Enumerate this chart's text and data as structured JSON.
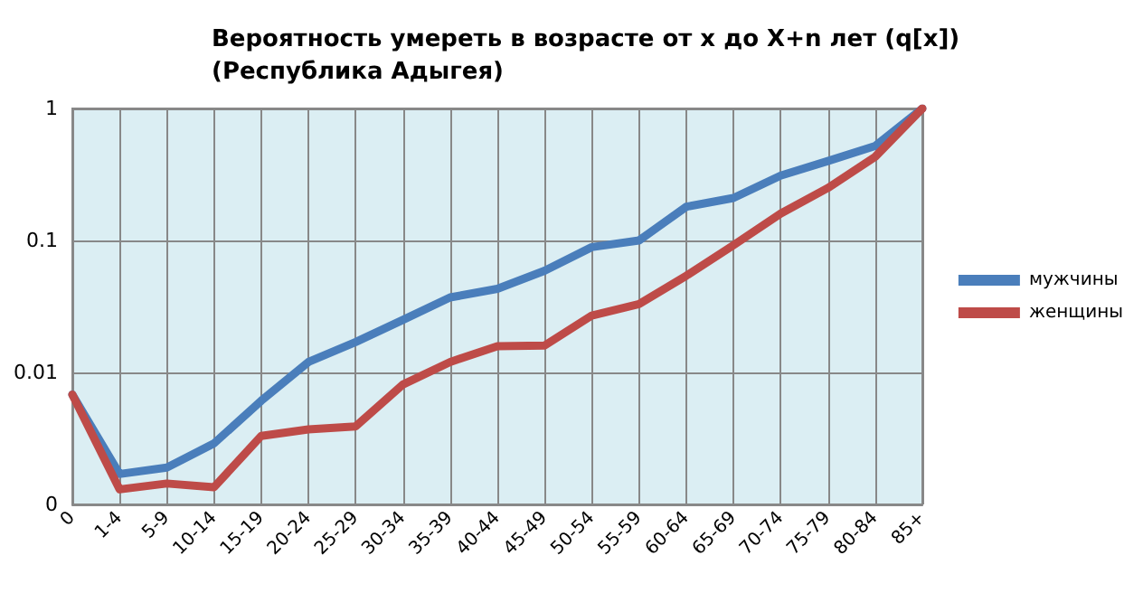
{
  "chart_data": {
    "type": "line",
    "title": "Вероятность умереть в возрасте от x до X+n лет (q[x])\n(Республика Адыгея)",
    "categories": [
      "0",
      "1-4",
      "5-9",
      "10-14",
      "15-19",
      "20-24",
      "25-29",
      "30-34",
      "35-39",
      "40-44",
      "45-49",
      "50-54",
      "55-59",
      "60-64",
      "65-69",
      "70-74",
      "75-79",
      "80-84",
      "85+"
    ],
    "series": [
      {
        "name": "мужчины",
        "color": "#4a7ebb",
        "values": [
          0.0068,
          0.0017,
          0.0019,
          0.0029,
          0.0061,
          0.012,
          0.017,
          0.025,
          0.037,
          0.043,
          0.059,
          0.089,
          0.1,
          0.18,
          0.21,
          0.31,
          0.4,
          0.52,
          1
        ]
      },
      {
        "name": "женщины",
        "color": "#be4b48",
        "values": [
          0.0068,
          0.0013,
          0.00144,
          0.00135,
          0.0033,
          0.0037,
          0.0039,
          0.0081,
          0.012,
          0.0158,
          0.016,
          0.027,
          0.033,
          0.054,
          0.092,
          0.16,
          0.25,
          0.43,
          1
        ]
      }
    ],
    "log": "y",
    "ylim": [
      0.001,
      1
    ],
    "yticks": [
      {
        "value": 0.001,
        "label": "0"
      },
      0.01,
      0.1,
      1
    ],
    "grid": true,
    "legend": "right",
    "marker": "none",
    "line_style": "solid"
  }
}
